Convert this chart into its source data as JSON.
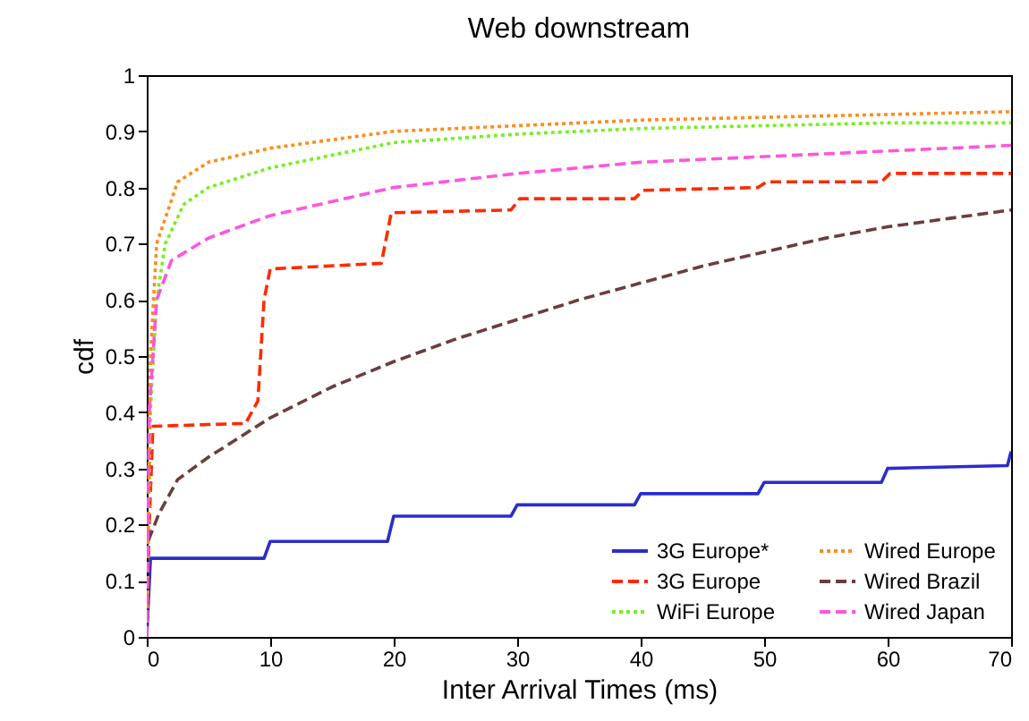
{
  "chart_data": {
    "type": "line",
    "title": "Web downstream",
    "xlabel": "Inter Arrival Times (ms)",
    "ylabel": "cdf",
    "xlim": [
      0,
      70
    ],
    "xticks": [
      0,
      10,
      20,
      30,
      40,
      50,
      60,
      70
    ],
    "ylim": [
      0,
      1
    ],
    "yticks": [
      0,
      0.1,
      0.2,
      0.3,
      0.4,
      0.5,
      0.6,
      0.7,
      0.8,
      0.9,
      1
    ],
    "grid": false,
    "legend": "bottom right",
    "marker": "none",
    "series": [
      {
        "name": "3G Europe*",
        "color": "#2c2ccc",
        "line_style": "solid",
        "x": [
          0,
          0.3,
          9.5,
          10,
          19.5,
          20,
          29.5,
          30,
          39.5,
          40,
          49.5,
          50,
          59.5,
          60,
          69.7,
          70
        ],
        "values": [
          0,
          0.14,
          0.14,
          0.17,
          0.17,
          0.215,
          0.215,
          0.235,
          0.235,
          0.255,
          0.255,
          0.275,
          0.275,
          0.3,
          0.305,
          0.33
        ]
      },
      {
        "name": "3G Europe",
        "color": "#ff2a00",
        "line_style": "dashed",
        "x": [
          0,
          0.2,
          0.5,
          8,
          9,
          9.5,
          10,
          19,
          19.8,
          29.5,
          30.2,
          39.5,
          40.2,
          49.5,
          50.2,
          59.5,
          60.2,
          70
        ],
        "values": [
          0,
          0.2,
          0.375,
          0.38,
          0.42,
          0.6,
          0.655,
          0.665,
          0.755,
          0.76,
          0.78,
          0.78,
          0.795,
          0.8,
          0.81,
          0.81,
          0.825,
          0.825
        ]
      },
      {
        "name": "WiFi Europe",
        "color": "#77ee22",
        "line_style": "dotted",
        "x": [
          0,
          0.3,
          0.8,
          1.5,
          3,
          5,
          10,
          20,
          30,
          40,
          50,
          60,
          70
        ],
        "values": [
          0,
          0.4,
          0.6,
          0.7,
          0.77,
          0.8,
          0.835,
          0.88,
          0.895,
          0.905,
          0.91,
          0.915,
          0.915
        ]
      },
      {
        "name": "Wired Europe",
        "color": "#ff8c1a",
        "line_style": "dotted",
        "x": [
          0,
          0.3,
          0.8,
          2.5,
          5,
          10,
          20,
          30,
          40,
          50,
          60,
          70
        ],
        "values": [
          0,
          0.5,
          0.7,
          0.81,
          0.845,
          0.87,
          0.9,
          0.91,
          0.92,
          0.925,
          0.93,
          0.935
        ]
      },
      {
        "name": "Wired Brazil",
        "color": "#6b3e3e",
        "line_style": "dashed",
        "x": [
          0,
          0.1,
          1,
          2.5,
          5,
          10,
          15,
          20,
          25,
          30,
          35,
          40,
          45,
          50,
          55,
          60,
          65,
          70
        ],
        "values": [
          0,
          0.17,
          0.22,
          0.28,
          0.32,
          0.39,
          0.445,
          0.49,
          0.53,
          0.565,
          0.6,
          0.63,
          0.66,
          0.685,
          0.71,
          0.73,
          0.745,
          0.76
        ]
      },
      {
        "name": "Wired Japan",
        "color": "#ff55dd",
        "line_style": "dashed",
        "x": [
          0,
          0.2,
          0.8,
          2,
          5,
          10,
          20,
          30,
          40,
          50,
          60,
          70
        ],
        "values": [
          0,
          0.4,
          0.6,
          0.67,
          0.71,
          0.75,
          0.8,
          0.825,
          0.845,
          0.855,
          0.865,
          0.875
        ]
      }
    ]
  }
}
